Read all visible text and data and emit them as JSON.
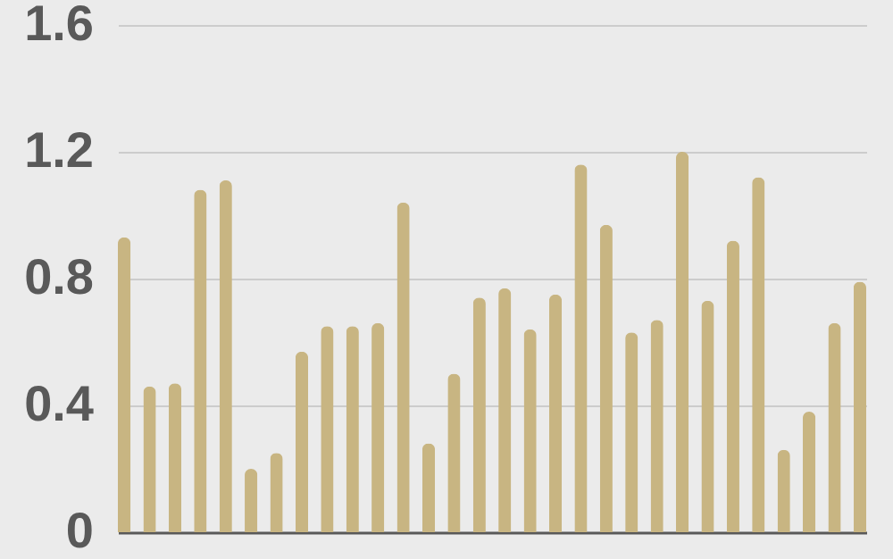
{
  "chart_data": {
    "type": "bar",
    "categories": [
      null,
      null,
      null,
      null,
      null,
      null,
      null,
      null,
      null,
      null,
      null,
      null,
      null,
      null,
      null,
      null,
      null,
      null,
      null,
      null,
      null,
      null,
      null,
      null,
      null,
      null,
      null,
      null,
      null,
      null
    ],
    "values": [
      0.93,
      0.46,
      0.47,
      1.08,
      1.11,
      0.2,
      0.25,
      0.57,
      0.65,
      0.65,
      0.66,
      1.04,
      0.28,
      0.5,
      0.74,
      0.77,
      0.64,
      0.75,
      1.16,
      0.97,
      0.63,
      0.67,
      1.2,
      0.73,
      0.92,
      1.12,
      0.26,
      0.38,
      0.66,
      0.79
    ],
    "color": "#c8b582",
    "ylim": [
      0,
      1.6
    ],
    "yticks": [
      {
        "value": 0,
        "label": "0"
      },
      0.4,
      0.8,
      1.2,
      1.6
    ],
    "grid": "y",
    "tick_labels": "y"
  }
}
